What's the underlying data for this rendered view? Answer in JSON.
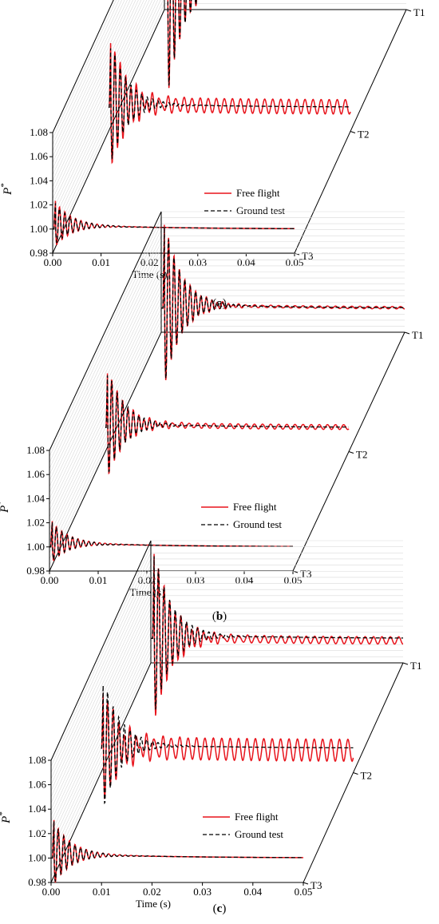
{
  "chart_data": [
    {
      "type": "line",
      "panel": "a",
      "caption_prefix": "(",
      "caption_letter": "a",
      "caption_suffix": ")",
      "xlabel": "Time (s)",
      "ylabel": "P",
      "ylabel_sup": "*",
      "xlim": [
        0,
        0.05
      ],
      "ylim": [
        0.98,
        1.08
      ],
      "xticks": [
        "0.00",
        "0.01",
        "0.02",
        "0.03",
        "0.04",
        "0.05"
      ],
      "yticks": [
        "0.98",
        "1.00",
        "1.02",
        "1.04",
        "1.06",
        "1.08"
      ],
      "depth_categories": [
        "T1",
        "T2",
        "T3"
      ],
      "legend": [
        "Free flight",
        "Ground test"
      ],
      "series": [
        {
          "name": "Free flight",
          "T1": {
            "peak": 1.105,
            "settle": 1.0,
            "osc": 0.0025
          },
          "T2": {
            "peak": 1.06,
            "settle": 1.0,
            "osc": 0.006
          },
          "T3": {
            "peak": 1.02,
            "settle": 1.0,
            "osc": 0.0
          }
        },
        {
          "name": "Ground test",
          "T1": {
            "peak": 1.1,
            "settle": 0.999,
            "osc": 0.0
          },
          "T2": {
            "peak": 1.055,
            "settle": 1.0,
            "osc": 0.0
          },
          "T3": {
            "peak": 1.018,
            "settle": 1.0,
            "osc": 0.0
          }
        }
      ]
    },
    {
      "type": "line",
      "panel": "b",
      "caption_prefix": "(",
      "caption_letter": "b",
      "caption_suffix": ")",
      "xlabel": "Time (s)",
      "ylabel": "P",
      "ylabel_sup": "*",
      "xlim": [
        0,
        0.05
      ],
      "ylim": [
        0.98,
        1.08
      ],
      "xticks": [
        "0.00",
        "0.01",
        "0.02",
        "0.03",
        "0.04",
        "0.05"
      ],
      "yticks": [
        "0.98",
        "1.00",
        "1.02",
        "1.04",
        "1.06",
        "1.08"
      ],
      "depth_categories": [
        "T1",
        "T2",
        "T3"
      ],
      "legend": [
        "Free flight",
        "Ground test"
      ],
      "series": [
        {
          "name": "Free flight",
          "T1": {
            "peak": 1.075,
            "settle": 1.0,
            "osc": 0.001
          },
          "T2": {
            "peak": 1.05,
            "settle": 1.0,
            "osc": 0.002
          },
          "T3": {
            "peak": 1.018,
            "settle": 1.0,
            "osc": 0.0
          }
        },
        {
          "name": "Ground test",
          "T1": {
            "peak": 1.073,
            "settle": 1.0,
            "osc": 0.0
          },
          "T2": {
            "peak": 1.048,
            "settle": 1.0,
            "osc": 0.0
          },
          "T3": {
            "peak": 1.017,
            "settle": 1.0,
            "osc": 0.0
          }
        }
      ]
    },
    {
      "type": "line",
      "panel": "c",
      "caption_prefix": "(",
      "caption_letter": "c",
      "caption_suffix": ")",
      "xlabel": "Time (s)",
      "ylabel": "P",
      "ylabel_sup": "*",
      "xlim": [
        0,
        0.05
      ],
      "ylim": [
        0.98,
        1.08
      ],
      "xticks": [
        "0.00",
        "0.01",
        "0.02",
        "0.03",
        "0.04",
        "0.05"
      ],
      "yticks": [
        "0.98",
        "1.00",
        "1.02",
        "1.04",
        "1.06",
        "1.08"
      ],
      "depth_categories": [
        "T1",
        "T2",
        "T3"
      ],
      "legend": [
        "Free flight",
        "Ground test"
      ],
      "series": [
        {
          "name": "Free flight",
          "T1": {
            "peak": 1.075,
            "settle": 0.998,
            "osc": 0.003
          },
          "T2": {
            "peak": 1.05,
            "settle": 0.998,
            "osc": 0.009
          },
          "T3": {
            "peak": 1.028,
            "settle": 1.0,
            "osc": 0.0
          }
        },
        {
          "name": "Ground test",
          "T1": {
            "peak": 1.073,
            "settle": 1.0,
            "osc": 0.0
          },
          "T2": {
            "peak": 1.058,
            "settle": 1.0,
            "osc": 0.0
          },
          "T3": {
            "peak": 1.027,
            "settle": 1.0,
            "osc": 0.0
          }
        }
      ]
    }
  ]
}
